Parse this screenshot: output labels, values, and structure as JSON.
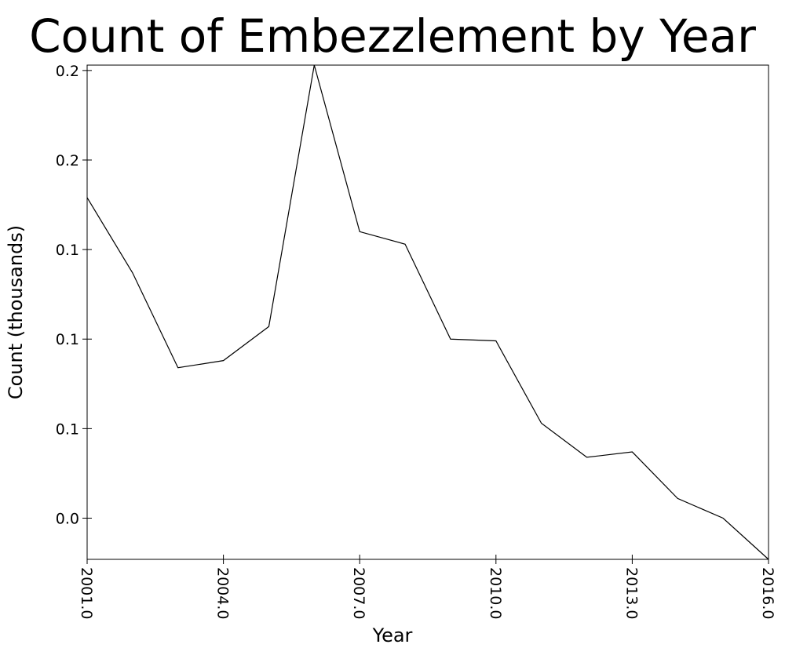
{
  "chart_data": {
    "type": "line",
    "title": "Count of Embezzlement by Year",
    "x_label": "Year",
    "y_label": "Count (thousands)",
    "x": [
      2001,
      2002,
      2003,
      2004,
      2005,
      2006,
      2007,
      2008,
      2009,
      2010,
      2011,
      2012,
      2013,
      2014,
      2015,
      2016
    ],
    "values": [
      0.179,
      0.137,
      0.084,
      0.088,
      0.107,
      0.253,
      0.16,
      0.153,
      0.1,
      0.099,
      0.053,
      0.034,
      0.037,
      0.011,
      0.0,
      -0.023
    ],
    "color": "#000000",
    "xlim": [
      2001,
      2016
    ],
    "xticks": [
      {
        "value": 2001,
        "label": "2001.0"
      },
      {
        "value": 2004,
        "label": "2004.0"
      },
      {
        "value": 2007,
        "label": "2007.0"
      },
      {
        "value": 2010,
        "label": "2010.0"
      },
      {
        "value": 2013,
        "label": "2013.0"
      },
      {
        "value": 2016,
        "label": "2016.0"
      }
    ],
    "ylim": [
      -0.023,
      0.253
    ],
    "yticks": [
      {
        "value": 0,
        "label": "0.0"
      },
      {
        "value": 0.05,
        "label": "0.1"
      },
      {
        "value": 0.1,
        "label": "0.1"
      },
      {
        "value": 0.15,
        "label": "0.1"
      },
      {
        "value": 0.2,
        "label": "0.2"
      },
      {
        "value": 0.25,
        "label": "0.2"
      }
    ]
  }
}
